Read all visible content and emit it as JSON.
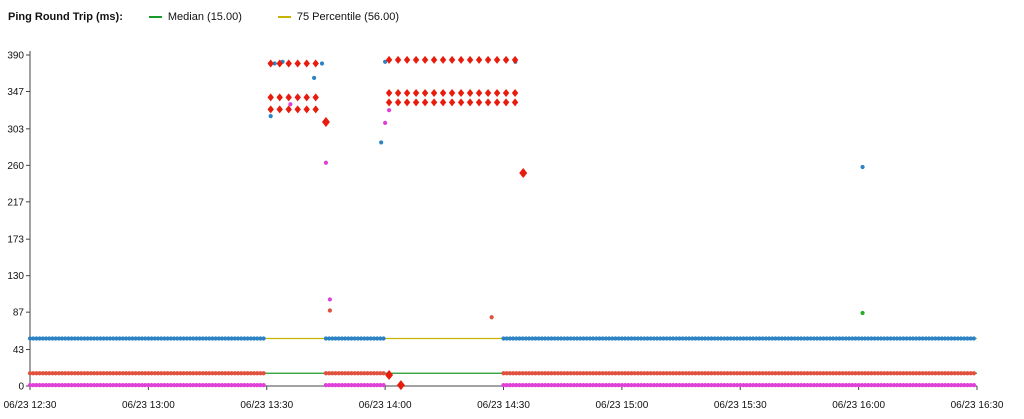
{
  "chart_data": {
    "type": "scatter",
    "title": "Ping Round Trip (ms):",
    "legend": [
      {
        "name": "Median (15.00)",
        "color": "#1a9a2a"
      },
      {
        "name": "75 Percentile (56.00)",
        "color": "#c8b400"
      }
    ],
    "legend_placement": "top-left",
    "grid": false,
    "yticks": [
      0,
      43,
      87,
      130,
      173,
      217,
      260,
      303,
      347,
      390
    ],
    "ylim": [
      0,
      390
    ],
    "xlim": [
      "2023-06-23T12:30",
      "2023-06-23T16:30"
    ],
    "xticks": [
      "06/23 12:30",
      "06/23 13:00",
      "06/23 13:30",
      "06/23 14:00",
      "06/23 14:30",
      "06/23 15:00",
      "06/23 15:30",
      "06/23 16:00",
      "06/23 16:30"
    ],
    "xtick_times": [
      "12:30",
      "13:00",
      "13:30",
      "14:00",
      "14:30",
      "15:00",
      "15:30",
      "16:00",
      "16:30"
    ],
    "reference_lines": [
      {
        "name": "Median (15.00)",
        "y": 15,
        "color": "#1a9a2a"
      },
      {
        "name": "75 Percentile (56.00)",
        "y": 56,
        "color": "#c8b400"
      }
    ],
    "series": [
      {
        "color": "#2b82c4",
        "marker": "circle",
        "segments": [
          {
            "x0": "12:30",
            "x1": "13:30",
            "y": 56
          },
          {
            "x0": "13:45",
            "x1": "14:00",
            "y": 56
          },
          {
            "x0": "14:30",
            "x1": "16:00",
            "y": 56
          },
          {
            "x0": "16:00",
            "x1": "16:30",
            "y": 56
          }
        ],
        "points": [
          {
            "x": "13:31",
            "y": 318
          },
          {
            "x": "13:32",
            "y": 380
          },
          {
            "x": "13:34",
            "y": 382
          },
          {
            "x": "13:42",
            "y": 363
          },
          {
            "x": "13:44",
            "y": 380
          },
          {
            "x": "13:59",
            "y": 287
          },
          {
            "x": "14:00",
            "y": 382
          },
          {
            "x": "14:33",
            "y": 382
          },
          {
            "x": "16:01",
            "y": 258
          }
        ]
      },
      {
        "color": "#e0503c",
        "marker": "circle",
        "segments": [
          {
            "x0": "12:30",
            "x1": "13:30",
            "y": 15
          },
          {
            "x0": "13:45",
            "x1": "14:00",
            "y": 15
          },
          {
            "x0": "14:30",
            "x1": "16:30",
            "y": 15
          }
        ],
        "points": [
          {
            "x": "13:46",
            "y": 89
          },
          {
            "x": "14:27",
            "y": 81
          }
        ]
      },
      {
        "color": "#e040d8",
        "marker": "circle",
        "segments": [
          {
            "x0": "12:30",
            "x1": "13:30",
            "y": 1
          },
          {
            "x0": "13:45",
            "x1": "14:00",
            "y": 1
          },
          {
            "x0": "14:30",
            "x1": "16:30",
            "y": 1
          }
        ],
        "points": [
          {
            "x": "13:45",
            "y": 263
          },
          {
            "x": "13:46",
            "y": 102
          },
          {
            "x": "14:00",
            "y": 310
          },
          {
            "x": "13:36",
            "y": 332
          },
          {
            "x": "14:01",
            "y": 325
          }
        ]
      },
      {
        "color": "#2aaa2a",
        "marker": "circle",
        "segments": [],
        "points": [
          {
            "x": "16:01",
            "y": 86
          }
        ]
      },
      {
        "color": "#e81c0c",
        "marker": "diamond",
        "segments": [
          {
            "x0": "13:31",
            "x1": "13:44",
            "y": 380
          },
          {
            "x0": "13:31",
            "x1": "13:44",
            "y": 340
          },
          {
            "x0": "13:31",
            "x1": "13:44",
            "y": 326
          },
          {
            "x0": "14:01",
            "x1": "14:35",
            "y": 386
          },
          {
            "x0": "14:01",
            "x1": "14:35",
            "y": 347
          },
          {
            "x0": "14:01",
            "x1": "14:35",
            "y": 336
          }
        ],
        "points": [
          {
            "x": "13:45",
            "y": 311
          },
          {
            "x": "14:35",
            "y": 251
          },
          {
            "x": "14:01",
            "y": 13
          },
          {
            "x": "14:04",
            "y": 1
          }
        ]
      }
    ]
  }
}
